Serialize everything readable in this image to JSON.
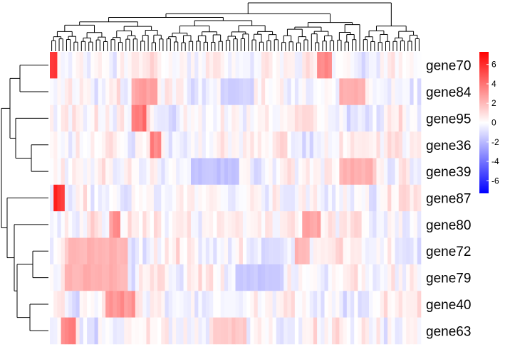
{
  "chart_data": {
    "type": "heatmap",
    "title": "",
    "xlabel": "",
    "ylabel": "",
    "rows": [
      "gene70",
      "gene84",
      "gene95",
      "gene36",
      "gene39",
      "gene87",
      "gene80",
      "gene72",
      "gene79",
      "gene40",
      "gene63"
    ],
    "n_columns": 100,
    "column_labels_visible": false,
    "colorbar": {
      "ticks": [
        6,
        4,
        2,
        0,
        -2,
        -4,
        -6
      ],
      "range": [
        -7.3,
        7.3
      ],
      "colors": {
        "low": "#0000ff",
        "mid": "#ffffff",
        "high": "#ff0000"
      }
    },
    "row_dendrogram": true,
    "column_dendrogram": true,
    "hotspots": [
      {
        "row": "gene70",
        "col_start": 0,
        "col_end": 1,
        "value": 7.0
      },
      {
        "row": "gene70",
        "col_start": 72,
        "col_end": 75,
        "value": 4.0
      },
      {
        "row": "gene84",
        "col_start": 22,
        "col_end": 28,
        "value": 3.0
      },
      {
        "row": "gene84",
        "col_start": 78,
        "col_end": 84,
        "value": 2.5
      },
      {
        "row": "gene95",
        "col_start": 22,
        "col_end": 25,
        "value": 4.5
      },
      {
        "row": "gene36",
        "col_start": 27,
        "col_end": 29,
        "value": 4.0
      },
      {
        "row": "gene39",
        "col_start": 78,
        "col_end": 86,
        "value": 2.5
      },
      {
        "row": "gene87",
        "col_start": 1,
        "col_end": 3,
        "value": 6.5
      },
      {
        "row": "gene80",
        "col_start": 16,
        "col_end": 18,
        "value": 3.5
      },
      {
        "row": "gene80",
        "col_start": 68,
        "col_end": 72,
        "value": 3.0
      },
      {
        "row": "gene72",
        "col_start": 5,
        "col_end": 20,
        "value": 2.5
      },
      {
        "row": "gene72",
        "col_start": 66,
        "col_end": 69,
        "value": 2.5
      },
      {
        "row": "gene79",
        "col_start": 4,
        "col_end": 20,
        "value": 2.5
      },
      {
        "row": "gene40",
        "col_start": 15,
        "col_end": 22,
        "value": 3.5
      },
      {
        "row": "gene63",
        "col_start": 3,
        "col_end": 6,
        "value": 4.0
      },
      {
        "row": "gene63",
        "col_start": 44,
        "col_end": 52,
        "value": 1.8
      },
      {
        "row": "gene39",
        "col_start": 38,
        "col_end": 50,
        "value": -2.0
      },
      {
        "row": "gene79",
        "col_start": 50,
        "col_end": 62,
        "value": -1.8
      },
      {
        "row": "gene84",
        "col_start": 46,
        "col_end": 54,
        "value": -1.5
      }
    ]
  }
}
